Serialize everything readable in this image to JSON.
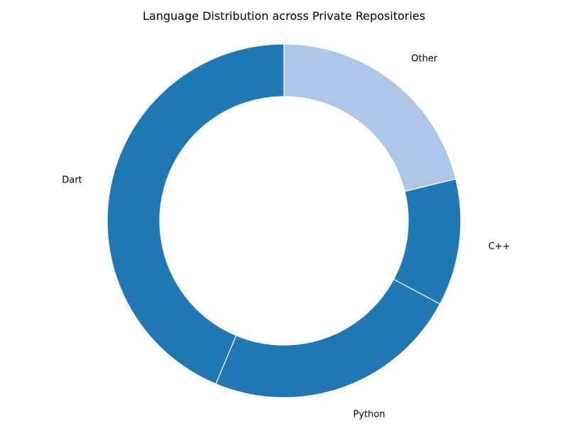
{
  "chart_data": {
    "type": "pie",
    "variant": "donut",
    "title": "Language Distribution across Private Repositories",
    "categories": [
      "Other",
      "C++",
      "Python",
      "Dart"
    ],
    "values": [
      21.2,
      11.6,
      23.5,
      43.7
    ],
    "unit": "%",
    "colors": [
      "#aec7e8",
      "#1f77b4",
      "#1f77b4",
      "#1f77b4"
    ],
    "edge_color": "#ffffff",
    "start_angle_deg": 90,
    "direction": "clockwise",
    "legend": "none",
    "grid": false
  }
}
